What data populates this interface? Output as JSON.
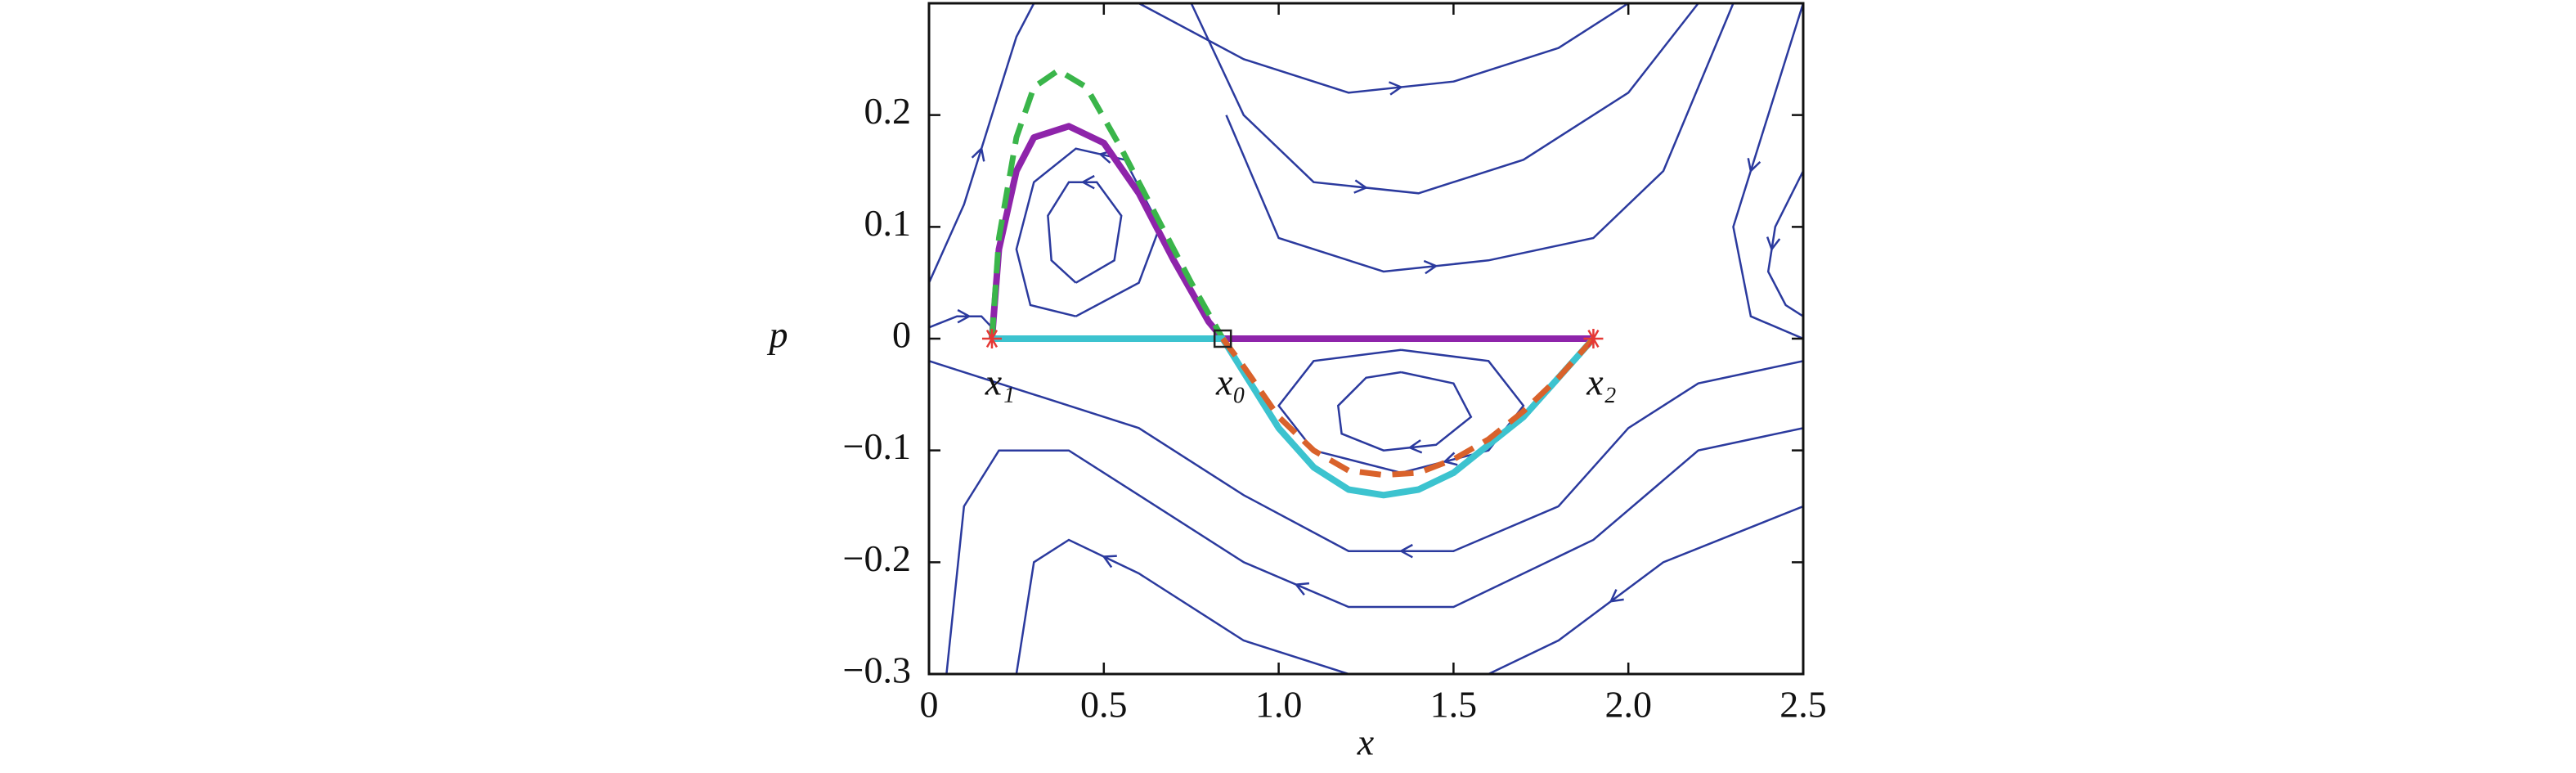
{
  "chart_data": {
    "type": "phase-portrait",
    "x_label": "x",
    "y_label": "p",
    "xlim": [
      0,
      2.5
    ],
    "ylim": [
      -0.3,
      0.3
    ],
    "xticks": [
      0,
      0.5,
      {
        "value": 1,
        "label": "1.0"
      },
      1.5,
      {
        "value": 2,
        "label": "2.0"
      },
      2.5
    ],
    "yticks": [
      {
        "value": -0.3,
        "label": "−0.3"
      },
      {
        "value": -0.2,
        "label": "−0.2"
      },
      {
        "value": -0.1,
        "label": "−0.1"
      },
      0,
      0.1,
      0.2
    ],
    "streamline_color": "#2b3a9e",
    "streamlines": [
      {
        "x": [
          0.6,
          0.9,
          1.2,
          1.5,
          1.8,
          2.0
        ],
        "y": [
          0.3,
          0.25,
          0.22,
          0.23,
          0.26,
          0.3
        ]
      },
      {
        "x": [
          0.75,
          0.9,
          1.1,
          1.4,
          1.7,
          2.0,
          2.2
        ],
        "y": [
          0.3,
          0.2,
          0.14,
          0.13,
          0.16,
          0.22,
          0.3
        ]
      },
      {
        "x": [
          0.85,
          1.0,
          1.3,
          1.6,
          1.9,
          2.1,
          2.3
        ],
        "y": [
          0.2,
          0.09,
          0.06,
          0.07,
          0.09,
          0.15,
          0.3
        ]
      },
      {
        "x": [
          0.0,
          0.1,
          0.2,
          0.25,
          0.3
        ],
        "y": [
          0.05,
          0.12,
          0.22,
          0.27,
          0.3
        ]
      },
      {
        "x": [
          0.0,
          0.08,
          0.15,
          0.18
        ],
        "y": [
          0.01,
          0.02,
          0.02,
          0.01
        ]
      },
      {
        "x": [
          0.42,
          0.6,
          0.66,
          0.56,
          0.42,
          0.3,
          0.25,
          0.29,
          0.42
        ],
        "y": [
          0.02,
          0.05,
          0.1,
          0.16,
          0.17,
          0.14,
          0.08,
          0.03,
          0.02
        ]
      },
      {
        "x": [
          0.42,
          0.53,
          0.55,
          0.48,
          0.4,
          0.34,
          0.35,
          0.42
        ],
        "y": [
          0.05,
          0.07,
          0.11,
          0.14,
          0.14,
          0.11,
          0.07,
          0.05
        ]
      },
      {
        "x": [
          1.35,
          1.6,
          1.7,
          1.6,
          1.35,
          1.1,
          1.0,
          1.1,
          1.35
        ],
        "y": [
          -0.01,
          -0.02,
          -0.06,
          -0.1,
          -0.12,
          -0.1,
          -0.06,
          -0.02,
          -0.01
        ]
      },
      {
        "x": [
          1.35,
          1.5,
          1.55,
          1.45,
          1.3,
          1.18,
          1.17,
          1.25,
          1.35
        ],
        "y": [
          -0.03,
          -0.04,
          -0.07,
          -0.095,
          -0.1,
          -0.085,
          -0.06,
          -0.035,
          -0.03
        ]
      },
      {
        "x": [
          2.5,
          2.2,
          2.0,
          1.8,
          1.5,
          1.2,
          0.9,
          0.6,
          0.3,
          0.0
        ],
        "y": [
          -0.02,
          -0.04,
          -0.08,
          -0.15,
          -0.19,
          -0.19,
          -0.14,
          -0.08,
          -0.05,
          -0.02
        ]
      },
      {
        "x": [
          2.5,
          2.2,
          1.9,
          1.5,
          1.2,
          0.9,
          0.6,
          0.4,
          0.2,
          0.1,
          0.05
        ],
        "y": [
          -0.08,
          -0.1,
          -0.18,
          -0.24,
          -0.24,
          -0.2,
          -0.14,
          -0.1,
          -0.1,
          -0.15,
          -0.3
        ]
      },
      {
        "x": [
          2.5,
          2.1,
          1.8,
          1.6
        ],
        "y": [
          -0.15,
          -0.2,
          -0.27,
          -0.3
        ]
      },
      {
        "x": [
          1.2,
          0.9,
          0.6,
          0.4,
          0.3,
          0.25
        ],
        "y": [
          -0.3,
          -0.27,
          -0.21,
          -0.18,
          -0.2,
          -0.3
        ]
      },
      {
        "x": [
          2.5,
          2.4,
          2.3,
          2.35,
          2.5
        ],
        "y": [
          0.3,
          0.2,
          0.1,
          0.02,
          0.0
        ]
      },
      {
        "x": [
          2.5,
          2.42,
          2.4,
          2.45,
          2.5
        ],
        "y": [
          0.15,
          0.1,
          0.06,
          0.03,
          0.02
        ]
      }
    ],
    "series": [
      {
        "color": "#8e24aa",
        "style": "solid",
        "x": [
          0.18,
          0.2,
          0.25,
          0.3,
          0.4,
          0.5,
          0.6,
          0.7,
          0.8,
          0.84,
          1.9
        ],
        "y": [
          0,
          0.08,
          0.15,
          0.18,
          0.19,
          0.175,
          0.13,
          0.07,
          0.015,
          0,
          0
        ]
      },
      {
        "color": "#3ab54a",
        "style": "dashed",
        "x": [
          0.18,
          0.2,
          0.25,
          0.3,
          0.37,
          0.45,
          0.55,
          0.65,
          0.75,
          0.84
        ],
        "y": [
          0,
          0.09,
          0.18,
          0.225,
          0.24,
          0.225,
          0.17,
          0.11,
          0.05,
          0
        ]
      },
      {
        "color": "#3cc3cf",
        "style": "solid",
        "x": [
          0.18,
          0.84,
          0.9,
          1.0,
          1.1,
          1.2,
          1.3,
          1.4,
          1.5,
          1.6,
          1.7,
          1.8,
          1.9
        ],
        "y": [
          0,
          0,
          -0.03,
          -0.08,
          -0.115,
          -0.135,
          -0.14,
          -0.135,
          -0.12,
          -0.095,
          -0.07,
          -0.035,
          0
        ]
      },
      {
        "color": "#d9622b",
        "style": "dashed",
        "x": [
          0.84,
          0.9,
          1.0,
          1.1,
          1.2,
          1.3,
          1.4,
          1.5,
          1.6,
          1.7,
          1.8,
          1.9
        ],
        "y": [
          0,
          -0.025,
          -0.07,
          -0.1,
          -0.118,
          -0.122,
          -0.12,
          -0.108,
          -0.09,
          -0.065,
          -0.035,
          0
        ]
      }
    ],
    "points": {
      "x": [
        0.18,
        0.84,
        1.9
      ],
      "y": [
        0,
        0,
        0
      ],
      "markers": [
        "asterisk",
        "square",
        "asterisk"
      ],
      "colors": [
        "#e53935",
        "#222222",
        "#e53935"
      ],
      "labels": [
        "x₁",
        "x₀",
        "x₂"
      ]
    }
  }
}
